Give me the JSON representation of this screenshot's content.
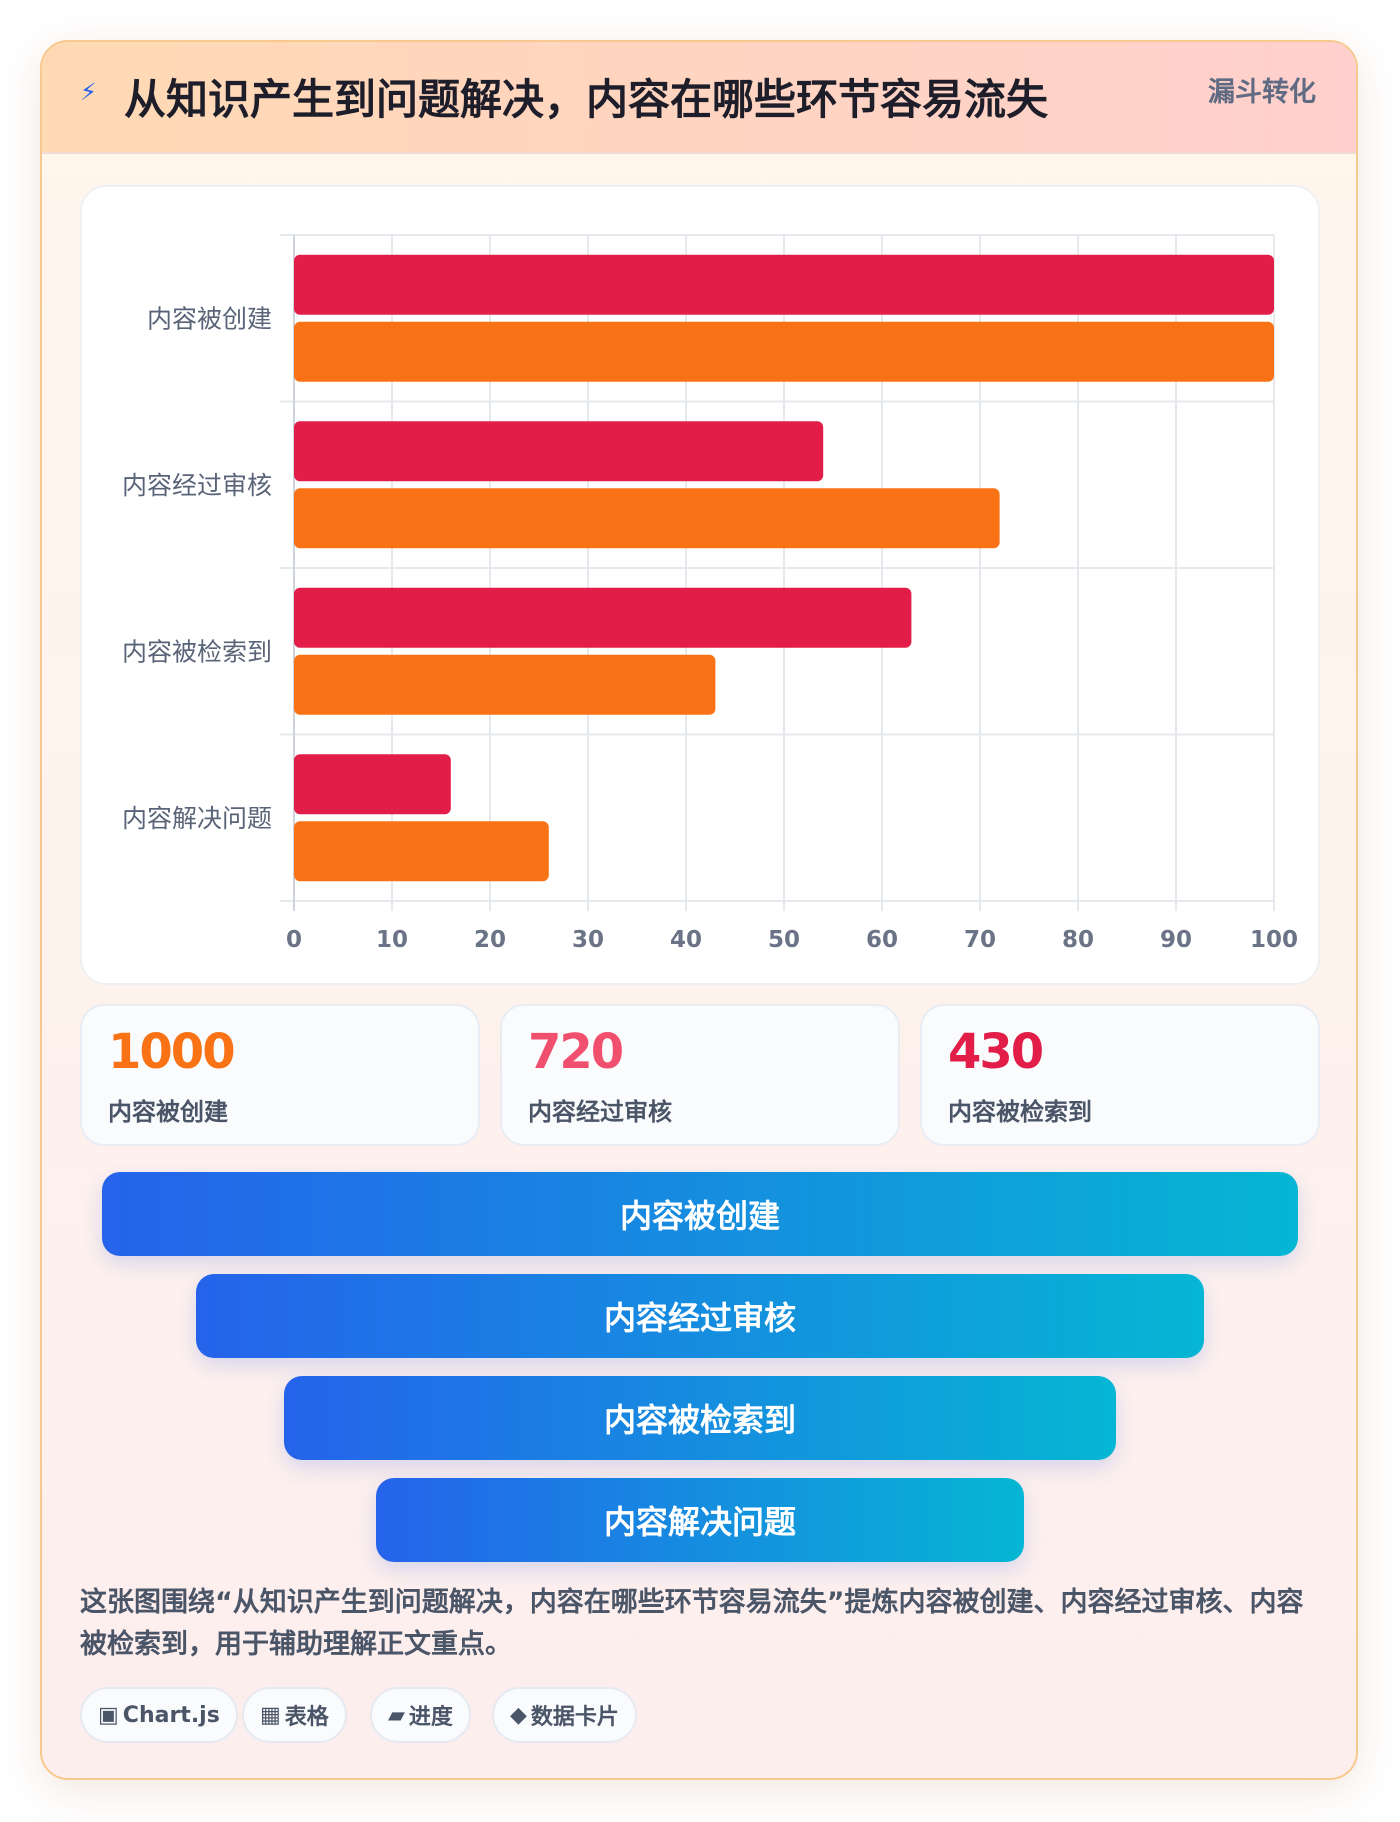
{
  "header": {
    "icon": "lightning-bolt-icon",
    "title": "从知识产生到问题解决，内容在哪些环节容易流失",
    "tag": "漏斗转化"
  },
  "chart_data": {
    "type": "bar",
    "orientation": "horizontal",
    "categories": [
      "内容被创建",
      "内容经过审核",
      "内容被检索到",
      "内容解决问题"
    ],
    "series": [
      {
        "values": [
          100,
          54,
          63,
          16
        ],
        "color": "#e11d48"
      },
      {
        "values": [
          100,
          72,
          43,
          26
        ],
        "color": "#f97316"
      }
    ],
    "xlim": [
      0,
      100
    ],
    "xticks": [
      0,
      10,
      20,
      30,
      40,
      50,
      60,
      70,
      80,
      90,
      100
    ],
    "grid": true,
    "legend": "none"
  },
  "stats": [
    {
      "value": "1000",
      "label": "内容被创建",
      "color": "#f97316"
    },
    {
      "value": "720",
      "label": "内容经过审核",
      "color": "#f0506e"
    },
    {
      "value": "430",
      "label": "内容被检索到",
      "color": "#e11d48"
    }
  ],
  "funnel": {
    "stages": [
      "内容被创建",
      "内容经过审核",
      "内容被检索到",
      "内容解决问题"
    ]
  },
  "description": "这张图围绕“从知识产生到问题解决，内容在哪些环节容易流失”提炼内容被创建、内容经过审核、内容被检索到，用于辅助理解正文重点。",
  "tags": [
    {
      "icon": "▣",
      "label": "Chart.js"
    },
    {
      "icon": "▦",
      "label": "表格"
    },
    {
      "icon": "▰",
      "label": "进度"
    },
    {
      "icon": "◆",
      "label": "数据卡片"
    }
  ]
}
